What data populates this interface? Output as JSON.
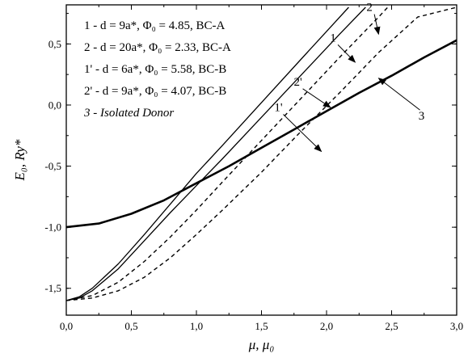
{
  "chart_data": {
    "type": "line",
    "xlabel": "μ, μ₀",
    "ylabel": "E₀, Ry*",
    "xlim": [
      0.0,
      3.0
    ],
    "ylim": [
      -1.72,
      0.82
    ],
    "x_ticks": [
      "0,0",
      "0,5",
      "1,0",
      "1,5",
      "2,0",
      "2,5",
      "3,0"
    ],
    "y_ticks": [
      "-1,5",
      "-1,0",
      "-0,5",
      "0,0",
      "0,5"
    ],
    "legend": [
      "1 - d = 9a*, Φ₀ = 4.85, BC-A",
      "2 - d = 20a*, Φ₀ = 2.33, BC-A",
      "1' - d = 6a*, Φ₀ = 5.58, BC-B",
      "2' - d = 9a*, Φ₀ = 4.07, BC-B",
      "3 - Isolated Donor"
    ],
    "series": [
      {
        "name": "1",
        "style": "solid",
        "points": [
          [
            0,
            -1.6
          ],
          [
            0.1,
            -1.58
          ],
          [
            0.2,
            -1.52
          ],
          [
            0.4,
            -1.34
          ],
          [
            0.6,
            -1.11
          ],
          [
            0.8,
            -0.88
          ],
          [
            1.0,
            -0.66
          ],
          [
            1.2,
            -0.44
          ],
          [
            1.5,
            -0.1
          ],
          [
            1.8,
            0.24
          ],
          [
            2.1,
            0.58
          ],
          [
            2.3,
            0.8
          ]
        ]
      },
      {
        "name": "2",
        "style": "solid",
        "points": [
          [
            0,
            -1.6
          ],
          [
            0.1,
            -1.57
          ],
          [
            0.2,
            -1.5
          ],
          [
            0.4,
            -1.3
          ],
          [
            0.6,
            -1.06
          ],
          [
            0.8,
            -0.81
          ],
          [
            1.0,
            -0.56
          ],
          [
            1.2,
            -0.33
          ],
          [
            1.5,
            0.02
          ],
          [
            1.8,
            0.37
          ],
          [
            2.05,
            0.66
          ],
          [
            2.17,
            0.8
          ]
        ]
      },
      {
        "name": "1'",
        "style": "dashed",
        "points": [
          [
            0,
            -1.6
          ],
          [
            0.2,
            -1.58
          ],
          [
            0.4,
            -1.52
          ],
          [
            0.6,
            -1.41
          ],
          [
            0.8,
            -1.25
          ],
          [
            1.0,
            -1.06
          ],
          [
            1.2,
            -0.86
          ],
          [
            1.5,
            -0.55
          ],
          [
            1.8,
            -0.22
          ],
          [
            2.1,
            0.1
          ],
          [
            2.4,
            0.43
          ],
          [
            2.7,
            0.72
          ],
          [
            3.0,
            0.8
          ]
        ]
      },
      {
        "name": "2'",
        "style": "dashed",
        "points": [
          [
            0,
            -1.6
          ],
          [
            0.2,
            -1.56
          ],
          [
            0.4,
            -1.45
          ],
          [
            0.6,
            -1.28
          ],
          [
            0.8,
            -1.08
          ],
          [
            1.0,
            -0.86
          ],
          [
            1.2,
            -0.63
          ],
          [
            1.5,
            -0.29
          ],
          [
            1.8,
            0.05
          ],
          [
            2.1,
            0.39
          ],
          [
            2.4,
            0.72
          ],
          [
            2.47,
            0.8
          ]
        ]
      },
      {
        "name": "3",
        "style": "thick",
        "points": [
          [
            0,
            -1.0
          ],
          [
            0.25,
            -0.97
          ],
          [
            0.5,
            -0.89
          ],
          [
            0.75,
            -0.78
          ],
          [
            1.0,
            -0.64
          ],
          [
            1.25,
            -0.5
          ],
          [
            1.5,
            -0.35
          ],
          [
            1.75,
            -0.2
          ],
          [
            2.0,
            -0.05
          ],
          [
            2.25,
            0.1
          ],
          [
            2.5,
            0.24
          ],
          [
            2.75,
            0.39
          ],
          [
            3.0,
            0.53
          ]
        ]
      }
    ],
    "curve_labels": [
      {
        "text": "2",
        "x": 2.33,
        "y": 0.77,
        "ax": 2.4,
        "ay": 0.58
      },
      {
        "text": "1",
        "x": 2.05,
        "y": 0.52,
        "ax": 2.22,
        "ay": 0.35
      },
      {
        "text": "2'",
        "x": 1.78,
        "y": 0.16,
        "ax": 2.03,
        "ay": -0.02
      },
      {
        "text": "1'",
        "x": 1.63,
        "y": -0.05,
        "ax": 1.96,
        "ay": -0.38
      },
      {
        "text": "3",
        "x": 2.73,
        "y": -0.12,
        "ax": 2.4,
        "ay": 0.22
      }
    ]
  }
}
